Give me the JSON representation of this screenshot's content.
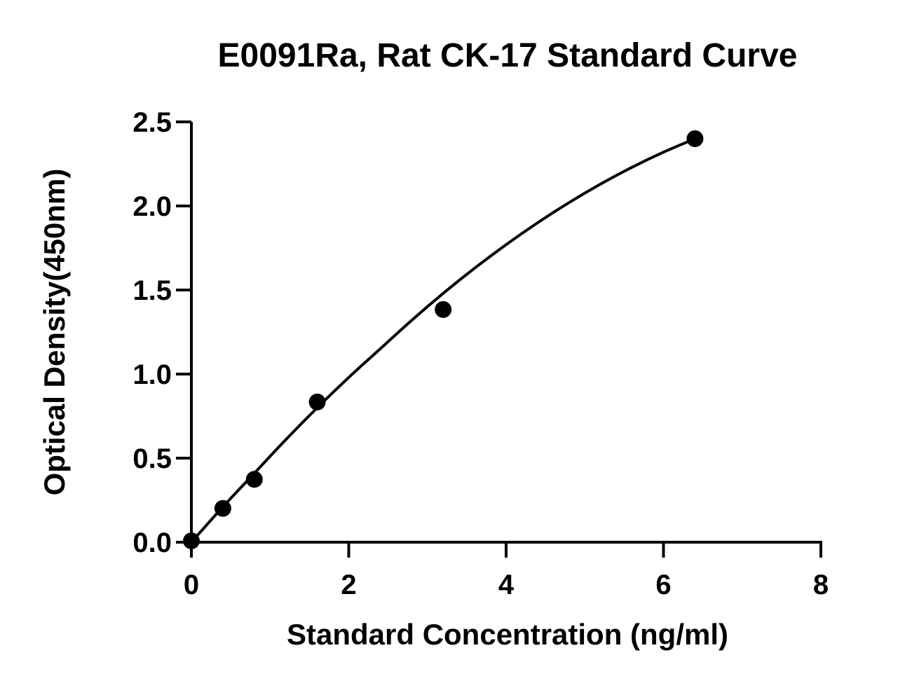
{
  "chart_data": {
    "type": "scatter",
    "title": "E0091Ra, Rat CK-17 Standard Curve",
    "xlabel": "Standard Concentration (ng/ml)",
    "ylabel": "Optical Density(450nm)",
    "xlim": [
      0,
      8
    ],
    "ylim": [
      0,
      2.5
    ],
    "xticks": [
      0,
      2,
      4,
      6,
      8
    ],
    "yticks": [
      0.0,
      0.5,
      1.0,
      1.5,
      2.0,
      2.5
    ],
    "xtick_labels": [
      "0",
      "2",
      "4",
      "6",
      "8"
    ],
    "ytick_labels": [
      "0.0",
      "0.5",
      "1.0",
      "1.5",
      "2.0",
      "2.5"
    ],
    "grid": false,
    "legend": "none",
    "series": [
      {
        "x": [
          0,
          0.4,
          0.8,
          1.6,
          3.2,
          6.4
        ],
        "y": [
          0.008,
          0.201,
          0.374,
          0.834,
          1.384,
          2.4
        ],
        "marker": "circle",
        "color": "#000000"
      }
    ],
    "fit_curve": {
      "x": [
        0,
        0.4,
        0.8,
        1.2,
        1.6,
        2.0,
        2.4,
        2.8,
        3.2,
        3.6,
        4.0,
        4.4,
        4.8,
        5.2,
        5.6,
        6.0,
        6.4
      ],
      "y": [
        0.0,
        0.21,
        0.41,
        0.61,
        0.8,
        0.98,
        1.15,
        1.32,
        1.48,
        1.63,
        1.77,
        1.9,
        2.02,
        2.13,
        2.23,
        2.32,
        2.4
      ],
      "color": "#000000"
    }
  }
}
